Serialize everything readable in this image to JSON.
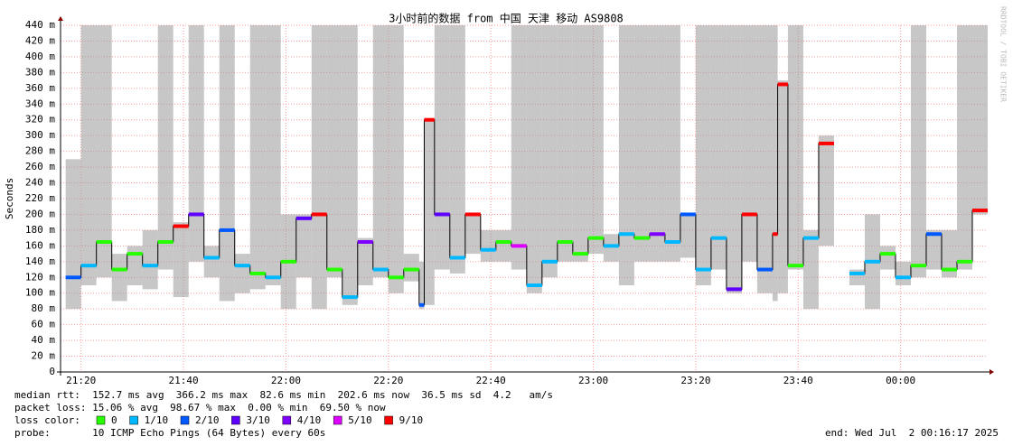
{
  "chart_data": {
    "type": "smokeping",
    "title": "3小时前的数据 from 中国 天津 移动 AS9808",
    "y_label": "Seconds",
    "watermark": "RRDTOOL / TOBI OETIKER",
    "xlim": [
      "21:16",
      "00:17"
    ],
    "xticks": [
      "21:20",
      "21:40",
      "22:00",
      "22:20",
      "22:40",
      "23:00",
      "23:20",
      "23:40",
      "00:00"
    ],
    "ylim": [
      0,
      440
    ],
    "yticks": [
      0,
      {
        "value": 20,
        "label": "20 m"
      },
      {
        "value": 40,
        "label": "40 m"
      },
      {
        "value": 60,
        "label": "60 m"
      },
      {
        "value": 80,
        "label": "80 m"
      },
      {
        "value": 100,
        "label": "100 m"
      },
      {
        "value": 120,
        "label": "120 m"
      },
      {
        "value": 140,
        "label": "140 m"
      },
      {
        "value": 160,
        "label": "160 m"
      },
      {
        "value": 180,
        "label": "180 m"
      },
      {
        "value": 200,
        "label": "200 m"
      },
      {
        "value": 220,
        "label": "220 m"
      },
      {
        "value": 240,
        "label": "240 m"
      },
      {
        "value": 260,
        "label": "260 m"
      },
      {
        "value": 280,
        "label": "280 m"
      },
      {
        "value": 300,
        "label": "300 m"
      },
      {
        "value": 320,
        "label": "320 m"
      },
      {
        "value": 340,
        "label": "340 m"
      },
      {
        "value": 360,
        "label": "360 m"
      },
      {
        "value": 380,
        "label": "380 m"
      },
      {
        "value": 400,
        "label": "400 m"
      },
      {
        "value": 420,
        "label": "420 m"
      },
      {
        "value": 440,
        "label": "440 m"
      }
    ],
    "grid": true,
    "smoke_color": "#999999",
    "x": [
      "21:17",
      "21:20",
      "21:23",
      "21:26",
      "21:29",
      "21:32",
      "21:35",
      "21:38",
      "21:41",
      "21:44",
      "21:47",
      "21:50",
      "21:53",
      "21:56",
      "21:59",
      "22:02",
      "22:05",
      "22:08",
      "22:11",
      "22:14",
      "22:17",
      "22:20",
      "22:23",
      "22:26",
      "22:27",
      "22:29",
      "22:32",
      "22:35",
      "22:38",
      "22:41",
      "22:44",
      "22:47",
      "22:50",
      "22:53",
      "22:56",
      "22:59",
      "23:02",
      "23:05",
      "23:08",
      "23:11",
      "23:14",
      "23:17",
      "23:20",
      "23:23",
      "23:26",
      "23:29",
      "23:32",
      "23:35",
      "23:36",
      "23:38",
      "23:41",
      "23:44",
      "23:47",
      "23:50",
      "23:53",
      "23:56",
      "23:59",
      "00:02",
      "00:05",
      "00:08",
      "00:11",
      "00:14"
    ],
    "median": [
      120,
      135,
      165,
      130,
      150,
      135,
      165,
      185,
      200,
      145,
      180,
      135,
      125,
      120,
      140,
      195,
      200,
      130,
      95,
      165,
      130,
      120,
      130,
      85,
      320,
      200,
      145,
      200,
      155,
      165,
      160,
      110,
      140,
      165,
      150,
      170,
      160,
      175,
      170,
      175,
      165,
      200,
      130,
      170,
      105,
      200,
      130,
      175,
      365,
      135,
      170,
      290,
      null,
      125,
      140,
      150,
      120,
      135,
      175,
      130,
      140,
      205
    ],
    "smoke_low": [
      80,
      110,
      120,
      90,
      110,
      105,
      130,
      95,
      140,
      120,
      90,
      100,
      105,
      110,
      80,
      120,
      80,
      120,
      85,
      110,
      120,
      100,
      115,
      80,
      85,
      130,
      125,
      150,
      140,
      140,
      130,
      100,
      120,
      140,
      140,
      150,
      140,
      110,
      140,
      140,
      140,
      145,
      110,
      130,
      100,
      140,
      100,
      90,
      100,
      130,
      80,
      160,
      null,
      110,
      80,
      130,
      110,
      120,
      130,
      120,
      130,
      200
    ],
    "smoke_high": [
      270,
      440,
      440,
      150,
      160,
      180,
      440,
      190,
      440,
      160,
      440,
      150,
      440,
      440,
      200,
      200,
      440,
      440,
      440,
      170,
      440,
      440,
      150,
      140,
      320,
      440,
      440,
      200,
      180,
      180,
      440,
      440,
      440,
      440,
      440,
      440,
      175,
      440,
      440,
      440,
      440,
      200,
      440,
      440,
      440,
      440,
      440,
      440,
      370,
      440,
      180,
      300,
      null,
      130,
      200,
      160,
      140,
      440,
      180,
      180,
      440,
      440
    ],
    "loss": [
      2,
      1,
      0,
      0,
      0,
      1,
      0,
      9,
      3,
      1,
      2,
      1,
      0,
      1,
      0,
      3,
      9,
      0,
      1,
      4,
      1,
      0,
      0,
      2,
      9,
      3,
      1,
      9,
      1,
      0,
      5,
      1,
      1,
      0,
      0,
      0,
      1,
      1,
      0,
      4,
      1,
      2,
      1,
      1,
      3,
      9,
      2,
      9,
      9,
      0,
      1,
      9,
      null,
      1,
      1,
      0,
      1,
      0,
      2,
      0,
      0,
      9
    ],
    "rtt_line": "median rtt:  152.7 ms avg  366.2 ms max  82.6 ms min  202.6 ms now  36.5 ms sd  4.2   am/s",
    "loss_line": "packet loss: 15.06 % avg  98.67 % max  0.00 % min  69.50 % now",
    "loss_color_label": "loss color:",
    "loss_legend": [
      {
        "level": 0,
        "label": "0",
        "color": "#26ff00"
      },
      {
        "level": 1,
        "label": "1/10",
        "color": "#00b8ff"
      },
      {
        "level": 2,
        "label": "2/10",
        "color": "#0059ff"
      },
      {
        "level": 3,
        "label": "3/10",
        "color": "#5e00ff"
      },
      {
        "level": 4,
        "label": "4/10",
        "color": "#7e00ff"
      },
      {
        "level": 5,
        "label": "5/10",
        "color": "#dd00ff"
      },
      {
        "level": 9,
        "label": "9/10",
        "color": "#ff0000"
      }
    ],
    "probe": "probe:       10 ICMP Echo Pings (64 Bytes) every 60s",
    "end": "end: Wed Jul  2 00:16:17 2025"
  }
}
